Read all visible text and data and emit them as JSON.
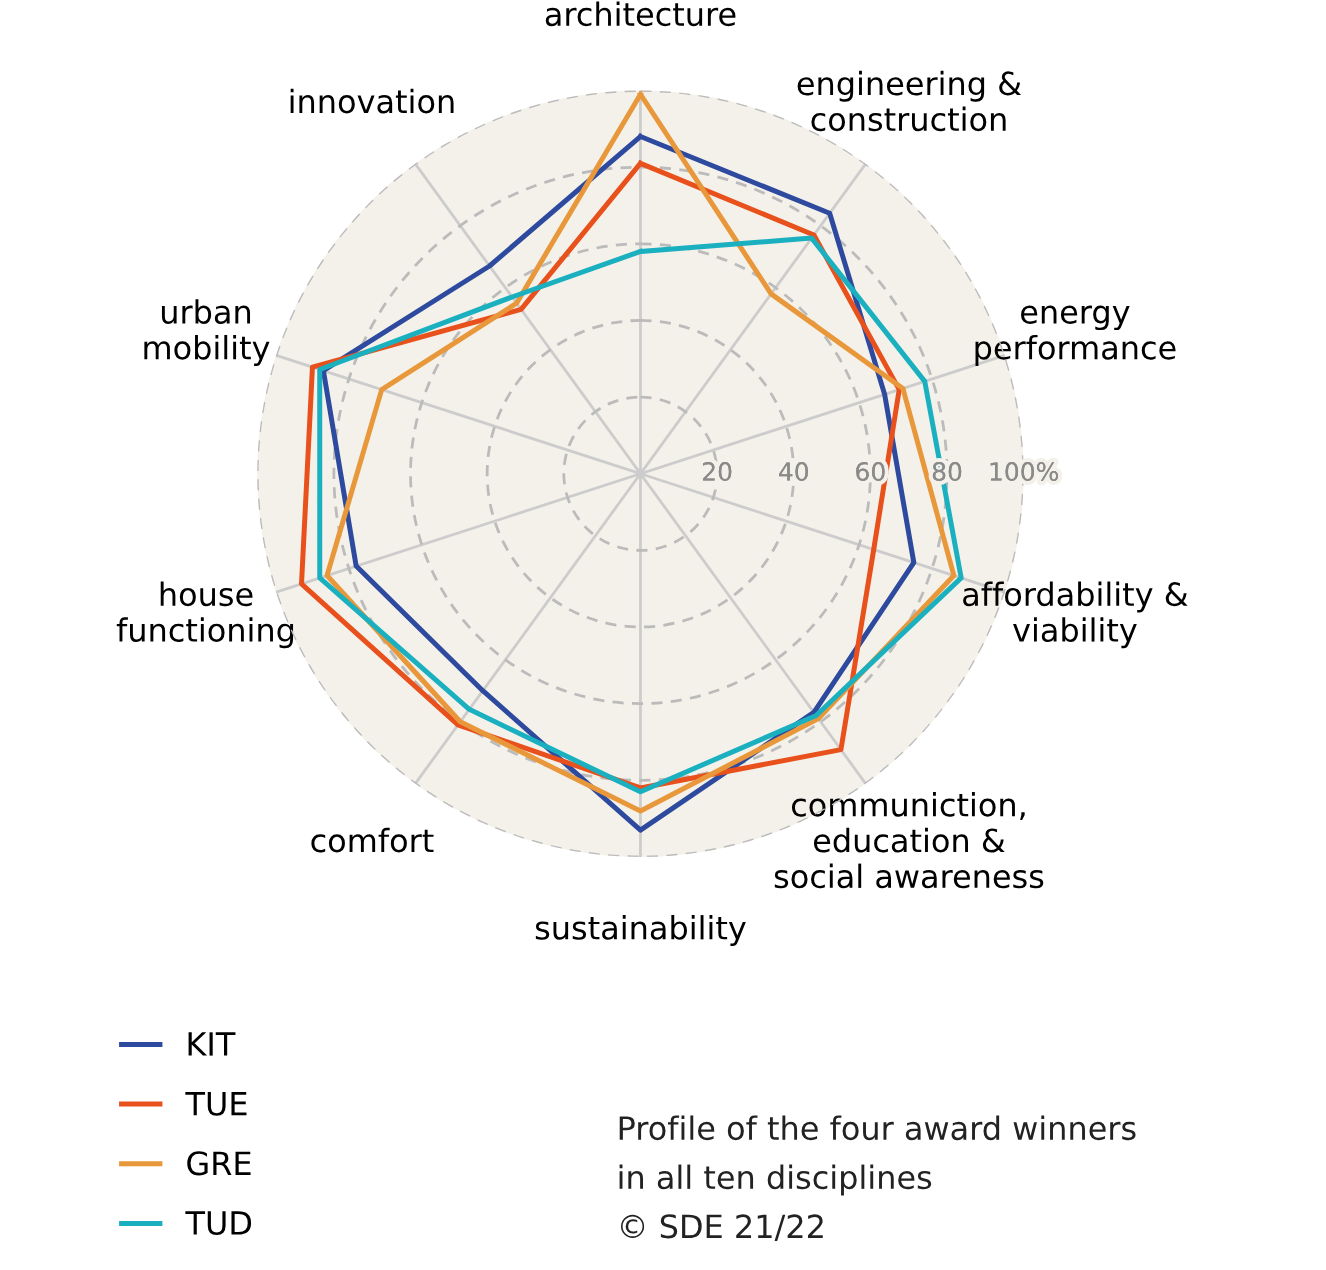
{
  "chart_data": {
    "type": "radar",
    "categories": [
      "architecture",
      "engineering &\nconstruction",
      "energy\nperformance",
      "affordability &\nviability",
      "communiction,\neducation &\nsocial awareness",
      "sustainability",
      "comfort",
      "house\nfunctioning",
      "urban\nmobility",
      "innovation"
    ],
    "series": [
      {
        "name": "KIT",
        "color": "#2e4a9e",
        "values": [
          88,
          84,
          67,
          75,
          77,
          93,
          70,
          78,
          87,
          67
        ]
      },
      {
        "name": "TUE",
        "color": "#e8501c",
        "values": [
          81,
          77,
          71,
          64,
          89,
          82,
          81,
          93,
          90,
          53
        ]
      },
      {
        "name": "GRE",
        "color": "#e8983a",
        "values": [
          99,
          58,
          72,
          86,
          79,
          88,
          80,
          86,
          71,
          55
        ]
      },
      {
        "name": "TUD",
        "color": "#1ab0c0",
        "values": [
          58,
          76,
          78,
          88,
          78,
          83,
          76,
          88,
          88,
          57
        ]
      }
    ],
    "ylim": [
      0,
      100
    ],
    "yticks": [
      20,
      40,
      60,
      80,
      {
        "value": 100,
        "label": "100%"
      }
    ],
    "grid": true,
    "legend": "bottom left",
    "marker": "none",
    "line_style": "solid",
    "annotations": [
      "Profile of the four award winners\nin all ten disciplines\n© SDE 21/22"
    ]
  }
}
